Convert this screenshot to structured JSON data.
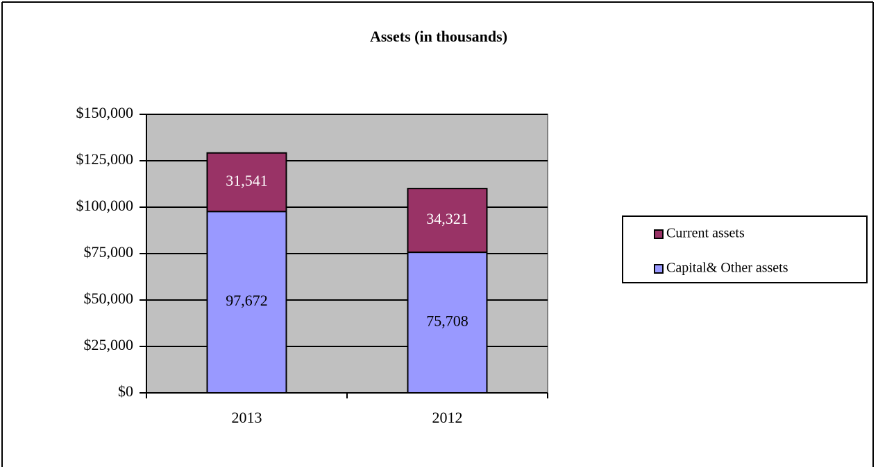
{
  "chart_data": {
    "type": "stacked_bar",
    "title": "Assets (in thousands)",
    "categories": [
      "2013",
      "2012"
    ],
    "series": [
      {
        "name": "Capital& Other assets",
        "color": "#9999ff",
        "values": [
          97672,
          75708
        ],
        "value_labels": [
          "97,672",
          "75,708"
        ]
      },
      {
        "name": "Current assets",
        "color": "#993366",
        "values": [
          31541,
          34321
        ],
        "value_labels": [
          "31,541",
          "34,321"
        ]
      }
    ],
    "ylim": [
      0,
      150000
    ],
    "yticks": [
      {
        "value": 0,
        "label": "$0"
      },
      {
        "value": 25000,
        "label": "$25,000"
      },
      {
        "value": 50000,
        "label": "$50,000"
      },
      {
        "value": 75000,
        "label": "$75,000"
      },
      {
        "value": 100000,
        "label": "$100,000"
      },
      {
        "value": 125000,
        "label": "$125,000"
      },
      {
        "value": 150000,
        "label": "$150,000"
      }
    ],
    "grid": true,
    "legend": "right"
  }
}
